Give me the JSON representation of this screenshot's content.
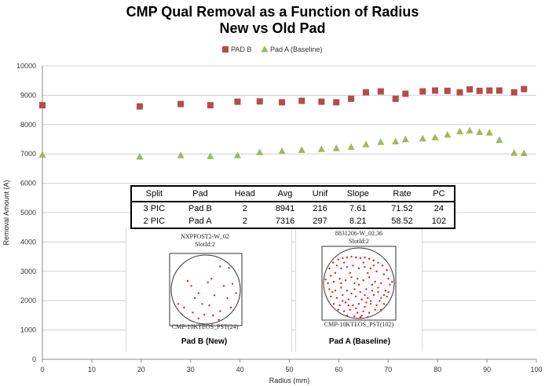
{
  "chart_data": {
    "type": "scatter",
    "title": "CMP Qual Removal as a Function of Radius",
    "subtitle": "New vs Old Pad",
    "xlabel": "Radius (mm)",
    "ylabel": "Removal Amount (A)",
    "xlim": [
      0,
      100
    ],
    "ylim": [
      0,
      10000
    ],
    "x_ticks": [
      0,
      10,
      20,
      30,
      40,
      50,
      60,
      70,
      80,
      90,
      100
    ],
    "y_ticks": [
      0,
      1000,
      2000,
      3000,
      4000,
      5000,
      6000,
      7000,
      8000,
      9000,
      10000
    ],
    "grid": "horizontal",
    "legend_position": "top",
    "series": [
      {
        "name": "PAD B",
        "marker": "square",
        "color": "#b84a4a",
        "x": [
          0,
          19.7,
          28,
          34,
          39.5,
          44,
          48.5,
          52.5,
          56.5,
          59.5,
          62.5,
          65.5,
          68.5,
          71.5,
          73.5,
          77,
          79.5,
          82,
          84.5,
          86.5,
          88.5,
          90.5,
          92.5,
          95.5,
          97.5
        ],
        "y": [
          8660,
          8620,
          8700,
          8660,
          8780,
          8790,
          8760,
          8810,
          8780,
          8760,
          8880,
          9100,
          9130,
          8880,
          9050,
          9130,
          9160,
          9150,
          9100,
          9200,
          9150,
          9160,
          9160,
          9100,
          9210
        ]
      },
      {
        "name": "Pad A (Baseline)",
        "marker": "triangle",
        "color": "#9bbb59",
        "x": [
          0,
          19.7,
          28,
          34,
          39.5,
          44,
          48.5,
          52.5,
          56.5,
          59.5,
          62.5,
          65.5,
          68.5,
          71.5,
          73.5,
          77,
          79.5,
          82,
          84.5,
          86.5,
          88.5,
          90.5,
          92.5,
          95.5,
          97.5
        ],
        "y": [
          6970,
          6900,
          6950,
          6920,
          6950,
          7050,
          7090,
          7130,
          7160,
          7190,
          7230,
          7320,
          7400,
          7420,
          7490,
          7520,
          7560,
          7650,
          7760,
          7790,
          7740,
          7720,
          7470,
          7030,
          7020
        ]
      }
    ]
  },
  "table": {
    "headers": [
      "Split",
      "Pad",
      "Head",
      "Avg",
      "Unif",
      "Slope",
      "Rate",
      "PC"
    ],
    "rows": [
      [
        "3 PIC",
        "Pad B",
        "2",
        "8941",
        "216",
        "7.61",
        "71.52",
        "24"
      ],
      [
        "2 PIC",
        "Pad A",
        "2",
        "7316",
        "297",
        "8.21",
        "58.52",
        "102"
      ]
    ]
  },
  "wafer_maps": [
    {
      "top_label_1": "NXPPOST2-W_02",
      "top_label_2": "SlotId:2",
      "bottom_label": "CMP-10KTEOS_PST(24)",
      "caption": "Pad B (New)",
      "defect_color": "#e02020",
      "defects": [
        [
          0.82,
          0.2
        ],
        [
          0.87,
          0.42
        ],
        [
          0.92,
          0.55
        ],
        [
          0.7,
          0.18
        ],
        [
          0.25,
          0.38
        ],
        [
          0.53,
          0.4
        ],
        [
          0.62,
          0.58
        ],
        [
          0.35,
          0.62
        ],
        [
          0.55,
          0.72
        ],
        [
          0.8,
          0.62
        ],
        [
          0.12,
          0.7
        ],
        [
          0.32,
          0.82
        ],
        [
          0.4,
          0.9
        ],
        [
          0.48,
          0.85
        ],
        [
          0.6,
          0.86
        ],
        [
          0.7,
          0.8
        ],
        [
          0.85,
          0.75
        ],
        [
          0.2,
          0.75
        ],
        [
          0.45,
          0.7
        ],
        [
          0.58,
          0.35
        ],
        [
          0.75,
          0.45
        ],
        [
          0.3,
          0.45
        ],
        [
          0.68,
          0.92
        ],
        [
          0.4,
          0.55
        ]
      ]
    },
    {
      "top_label_1": "8831206-W_02.36",
      "top_label_2": "SlotId:2",
      "bottom_label": "CMP-10KTEOS_PST(102)",
      "caption": "Pad A (Baseline)",
      "defect_color": "#e02020",
      "defects": [
        [
          0.1,
          0.3
        ],
        [
          0.15,
          0.22
        ],
        [
          0.22,
          0.18
        ],
        [
          0.28,
          0.16
        ],
        [
          0.34,
          0.15
        ],
        [
          0.4,
          0.14
        ],
        [
          0.46,
          0.15
        ],
        [
          0.52,
          0.16
        ],
        [
          0.58,
          0.15
        ],
        [
          0.64,
          0.17
        ],
        [
          0.7,
          0.19
        ],
        [
          0.76,
          0.22
        ],
        [
          0.82,
          0.26
        ],
        [
          0.88,
          0.32
        ],
        [
          0.12,
          0.4
        ],
        [
          0.18,
          0.36
        ],
        [
          0.26,
          0.3
        ],
        [
          0.34,
          0.28
        ],
        [
          0.42,
          0.26
        ],
        [
          0.5,
          0.3
        ],
        [
          0.58,
          0.28
        ],
        [
          0.66,
          0.3
        ],
        [
          0.74,
          0.34
        ],
        [
          0.84,
          0.38
        ],
        [
          0.9,
          0.44
        ],
        [
          0.08,
          0.5
        ],
        [
          0.16,
          0.48
        ],
        [
          0.24,
          0.44
        ],
        [
          0.32,
          0.46
        ],
        [
          0.4,
          0.42
        ],
        [
          0.48,
          0.44
        ],
        [
          0.56,
          0.46
        ],
        [
          0.64,
          0.42
        ],
        [
          0.72,
          0.48
        ],
        [
          0.8,
          0.5
        ],
        [
          0.92,
          0.52
        ],
        [
          0.1,
          0.58
        ],
        [
          0.18,
          0.6
        ],
        [
          0.26,
          0.56
        ],
        [
          0.34,
          0.6
        ],
        [
          0.44,
          0.58
        ],
        [
          0.52,
          0.62
        ],
        [
          0.6,
          0.58
        ],
        [
          0.68,
          0.6
        ],
        [
          0.76,
          0.62
        ],
        [
          0.86,
          0.6
        ],
        [
          0.12,
          0.68
        ],
        [
          0.2,
          0.7
        ],
        [
          0.28,
          0.66
        ],
        [
          0.36,
          0.72
        ],
        [
          0.46,
          0.68
        ],
        [
          0.54,
          0.72
        ],
        [
          0.62,
          0.7
        ],
        [
          0.7,
          0.66
        ],
        [
          0.8,
          0.7
        ],
        [
          0.88,
          0.68
        ],
        [
          0.16,
          0.78
        ],
        [
          0.24,
          0.8
        ],
        [
          0.32,
          0.76
        ],
        [
          0.42,
          0.8
        ],
        [
          0.5,
          0.78
        ],
        [
          0.58,
          0.82
        ],
        [
          0.66,
          0.78
        ],
        [
          0.74,
          0.8
        ],
        [
          0.84,
          0.78
        ],
        [
          0.22,
          0.86
        ],
        [
          0.3,
          0.88
        ],
        [
          0.38,
          0.86
        ],
        [
          0.48,
          0.9
        ],
        [
          0.56,
          0.88
        ],
        [
          0.64,
          0.9
        ],
        [
          0.72,
          0.86
        ],
        [
          0.8,
          0.86
        ],
        [
          0.34,
          0.94
        ],
        [
          0.44,
          0.95
        ],
        [
          0.54,
          0.94
        ],
        [
          0.62,
          0.96
        ],
        [
          0.05,
          0.45
        ],
        [
          0.95,
          0.48
        ],
        [
          0.3,
          0.22
        ],
        [
          0.56,
          0.22
        ],
        [
          0.7,
          0.26
        ],
        [
          0.2,
          0.26
        ],
        [
          0.14,
          0.62
        ],
        [
          0.9,
          0.62
        ],
        [
          0.38,
          0.36
        ],
        [
          0.62,
          0.36
        ],
        [
          0.44,
          0.5
        ],
        [
          0.68,
          0.52
        ],
        [
          0.26,
          0.5
        ],
        [
          0.5,
          0.52
        ],
        [
          0.76,
          0.56
        ],
        [
          0.4,
          0.64
        ],
        [
          0.58,
          0.66
        ],
        [
          0.84,
          0.66
        ],
        [
          0.28,
          0.74
        ],
        [
          0.66,
          0.74
        ],
        [
          0.46,
          0.84
        ],
        [
          0.6,
          0.76
        ],
        [
          0.36,
          0.8
        ],
        [
          0.78,
          0.74
        ],
        [
          0.52,
          0.96
        ]
      ]
    }
  ]
}
